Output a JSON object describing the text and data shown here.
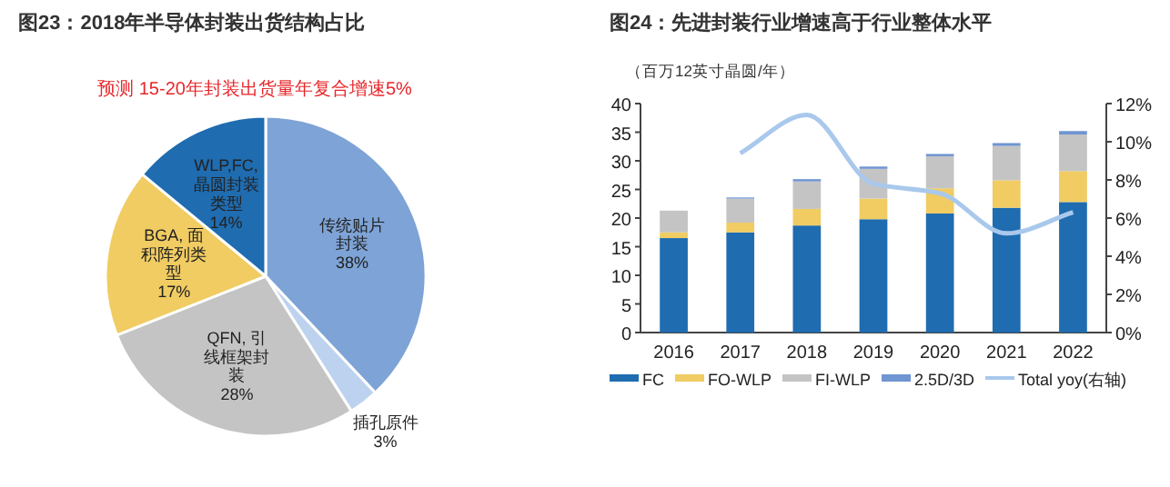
{
  "chart_data": [
    {
      "type": "pie",
      "title": "图23：2018年半导体封装出货结构占比",
      "annotations": [
        "预测 15-20年封装出货量年复合增速5%"
      ],
      "categories": [
        "传统贴片封装",
        "插孔原件",
        "QFN, 引线框架封装",
        "BGA, 面积阵列类型",
        "WLP,FC,晶圆封装类型"
      ],
      "values": [
        38,
        3,
        28,
        17,
        14
      ],
      "colors": [
        "#7ea3d6",
        "#bdd2ee",
        "#c4c4c4",
        "#f0cc62",
        "#1f6cb0"
      ],
      "value_labels": [
        "38%",
        "3%",
        "28%",
        "17%",
        "14%"
      ]
    },
    {
      "type": "bar",
      "stacked": true,
      "title": "图24：先进封装行业增速高于行业整体水平",
      "ylabel": "（百万12英寸晶圆/年）",
      "categories": [
        "2016",
        "2017",
        "2018",
        "2019",
        "2020",
        "2021",
        "2022"
      ],
      "series": [
        {
          "name": "FC",
          "color": "#1f6cb0",
          "values": [
            16.5,
            17.5,
            18.7,
            19.8,
            20.8,
            21.8,
            22.8
          ]
        },
        {
          "name": "FO-WLP",
          "color": "#f0cc62",
          "values": [
            1.0,
            1.7,
            2.9,
            3.6,
            4.4,
            4.8,
            5.4
          ]
        },
        {
          "name": "FI-WLP",
          "color": "#c4c4c4",
          "values": [
            3.8,
            4.2,
            4.8,
            5.2,
            5.6,
            6.0,
            6.4
          ]
        },
        {
          "name": "2.5D/3D",
          "color": "#6f95d2",
          "values": [
            0.0,
            0.2,
            0.4,
            0.4,
            0.4,
            0.5,
            0.6
          ]
        },
        {
          "name": "Total yoy(右轴)",
          "type": "line",
          "axis": "y2",
          "color": "#a9c8ec",
          "values": [
            null,
            9.4,
            11.4,
            7.8,
            7.3,
            5.2,
            6.3
          ]
        }
      ],
      "ylim": [
        0,
        40
      ],
      "yticks": [
        0,
        5,
        10,
        15,
        20,
        25,
        30,
        35,
        40
      ],
      "y2lim": [
        0,
        12
      ],
      "y2ticks": [
        {
          "value": 0,
          "label": "0%"
        },
        {
          "value": 2,
          "label": "2%"
        },
        {
          "value": 4,
          "label": "4%"
        },
        {
          "value": 6,
          "label": "6%"
        },
        {
          "value": 8,
          "label": "8%"
        },
        {
          "value": 10,
          "label": "10%"
        },
        {
          "value": 12,
          "label": "12%"
        }
      ],
      "grid": false,
      "legend": "bottom",
      "marker": "none",
      "line_style": "solid"
    }
  ]
}
